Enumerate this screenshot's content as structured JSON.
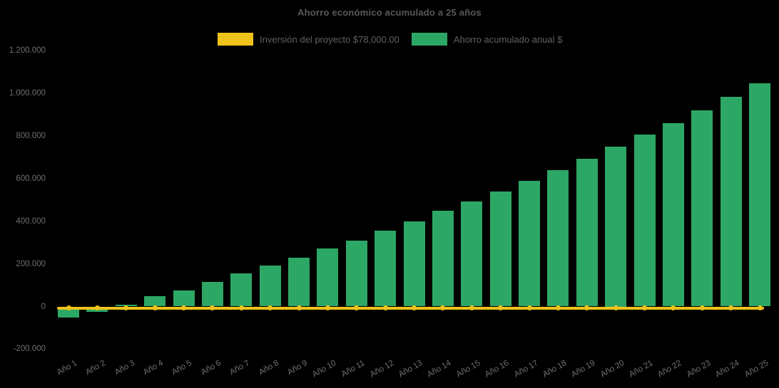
{
  "chart_data": {
    "type": "bar",
    "title": "Ahorro económico acumulado a 25 años",
    "legend_position": "top",
    "grid": false,
    "background": "#000000",
    "categories": [
      "Año 1",
      "Año 2",
      "Año 3",
      "Año 4",
      "Año 5",
      "Año 6",
      "Año 7",
      "Año 8",
      "Año 9",
      "Año 10",
      "Año 11",
      "Año 12",
      "Año 13",
      "Año 14",
      "Año 15",
      "Año 16",
      "Año 17",
      "Año 18",
      "Año 19",
      "Año 20",
      "Año 21",
      "Año 22",
      "Año 23",
      "Año 24",
      "Año 25"
    ],
    "series": [
      {
        "name": "Inversión del proyecto $78,000.00",
        "type": "line",
        "color": "#F0C31A",
        "markers": true,
        "plotted_at": -7500
      },
      {
        "name": "Ahorro acumulado anual $",
        "type": "bar",
        "color": "#2DA765",
        "values": [
          -52000,
          -24000,
          10000,
          48000,
          76000,
          116000,
          156000,
          192000,
          230000,
          272000,
          310000,
          356000,
          398000,
          450000,
          494000,
          540000,
          588000,
          638000,
          694000,
          750000,
          806000,
          860000,
          920000,
          982000,
          1046000
        ]
      }
    ],
    "ylim": [
      -200000,
      1200000
    ],
    "yticks": [
      {
        "value": -200000,
        "label": "-200.000"
      },
      {
        "value": 0,
        "label": "0"
      },
      {
        "value": 200000,
        "label": "200.000"
      },
      {
        "value": 400000,
        "label": "400.000"
      },
      {
        "value": 600000,
        "label": "600.000"
      },
      {
        "value": 800000,
        "label": "800.000"
      },
      {
        "value": 1000000,
        "label": "1.000.000"
      },
      {
        "value": 1200000,
        "label": "1.200.000"
      }
    ]
  },
  "colors": {
    "title_text": "#585858",
    "legend_text": "#616161",
    "tick_text": "#6F6F6F"
  }
}
